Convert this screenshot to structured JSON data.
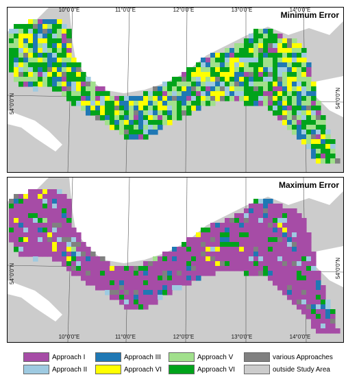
{
  "panels": [
    {
      "title": "Minimum Error",
      "lon_ticks": [
        "10°0'0\"E",
        "11°0'0\"E",
        "12°0'0\"E",
        "13°0'0\"E",
        "14°0'0\"E"
      ],
      "lat_label": "54°0'0\"N"
    },
    {
      "title": "Maximum Error",
      "lon_ticks": [
        "10°0'0\"E",
        "11°0'0\"E",
        "12°0'0\"E",
        "13°0'0\"E",
        "14°0'0\"E"
      ],
      "lat_label": "54°0'0\"N"
    }
  ],
  "legend": [
    {
      "label": "Approach I",
      "color": "#a64ca6"
    },
    {
      "label": "Approach II",
      "color": "#9ecae1"
    },
    {
      "label": "Approach III",
      "color": "#1f78b4"
    },
    {
      "label": "Approach VI",
      "color": "#ffff00"
    },
    {
      "label": "Approach V",
      "color": "#a1e08c"
    },
    {
      "label": "Approach VI",
      "color": "#00a31b"
    },
    {
      "label": "various Approaches",
      "color": "#808080"
    },
    {
      "label": "outside Study Area",
      "color": "#cccccc"
    }
  ],
  "colors": {
    "sea": "#ffffff",
    "land_outside": "#cccccc",
    "approach_i": "#a64ca6",
    "approach_ii": "#9ecae1",
    "approach_iii": "#1f78b4",
    "approach_vi_yellow": "#ffff00",
    "approach_v": "#a1e08c",
    "approach_vi_green": "#00a31b",
    "various": "#808080"
  }
}
